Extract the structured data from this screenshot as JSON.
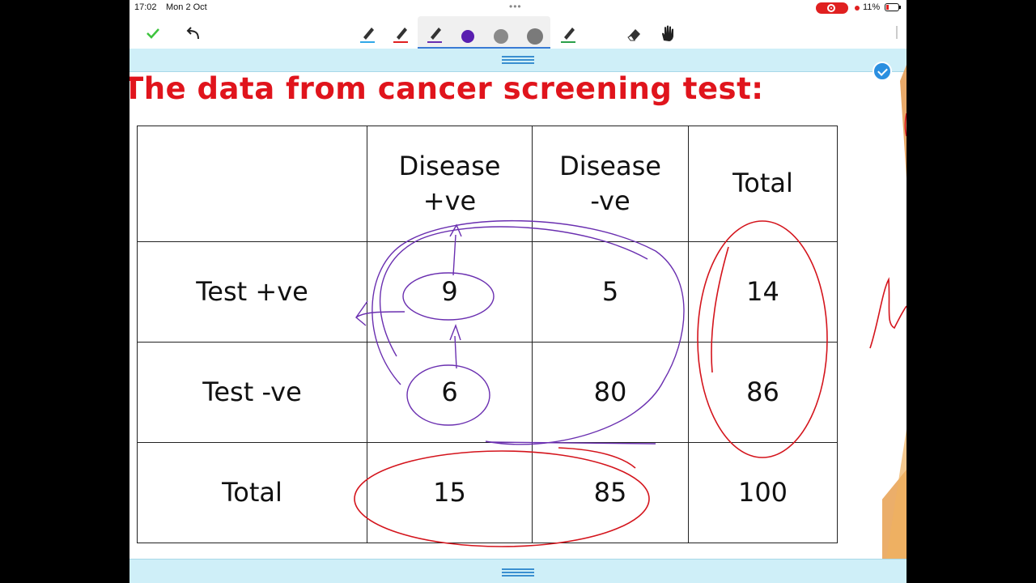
{
  "status_bar": {
    "time": "17:02",
    "date": "Mon 2 Oct",
    "battery": "11%"
  },
  "toolbar": {
    "tools": [
      "done-check",
      "undo",
      "pen-blue",
      "pen-red",
      "pen-purple",
      "color-purple",
      "color-grey",
      "color-grey-dark",
      "pen-green",
      "eraser",
      "hand"
    ]
  },
  "slide": {
    "title": "The data from cancer screening test:",
    "table": {
      "headers": [
        "",
        "Disease +ve",
        "Disease -ve",
        "Total"
      ],
      "header_lines": [
        [
          "",
          ""
        ],
        [
          "Disease",
          "+ve"
        ],
        [
          "Disease",
          "-ve"
        ],
        [
          "Total",
          ""
        ]
      ],
      "rows": [
        [
          "Test +ve",
          "9",
          "5",
          "14"
        ],
        [
          "Test -ve",
          "6",
          "80",
          "86"
        ],
        [
          "Total",
          "15",
          "85",
          "100"
        ]
      ]
    }
  },
  "colors": {
    "title": "#e0141c",
    "annotation_purple": "#6a2fb0",
    "annotation_red": "#d4141c",
    "accent_blue": "#2b8fe0"
  }
}
